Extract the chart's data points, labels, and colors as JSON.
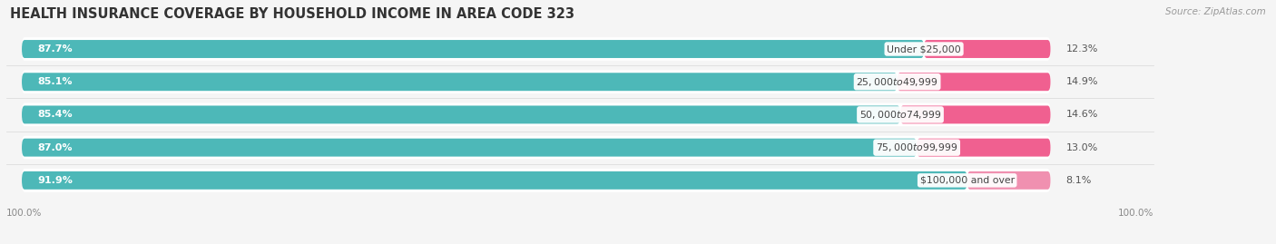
{
  "title": "HEALTH INSURANCE COVERAGE BY HOUSEHOLD INCOME IN AREA CODE 323",
  "source": "Source: ZipAtlas.com",
  "categories": [
    "Under $25,000",
    "$25,000 to $49,999",
    "$50,000 to $74,999",
    "$75,000 to $99,999",
    "$100,000 and over"
  ],
  "with_coverage": [
    87.7,
    85.1,
    85.4,
    87.0,
    91.9
  ],
  "without_coverage": [
    12.3,
    14.9,
    14.6,
    13.0,
    8.1
  ],
  "color_with": "#4db8b8",
  "color_without_rows04": [
    "#f06090",
    "#f06090",
    "#f06090",
    "#f06090",
    "#f090b0"
  ],
  "bg_color": "#f5f5f5",
  "row_bg_color": "#ffffff",
  "bar_track_color": "#e0e0e0",
  "title_fontsize": 10.5,
  "label_fontsize": 8.0,
  "cat_fontsize": 7.8,
  "tick_fontsize": 7.5,
  "source_fontsize": 7.5,
  "legend_fontsize": 8.0,
  "axis_label_left": "100.0%",
  "axis_label_right": "100.0%"
}
